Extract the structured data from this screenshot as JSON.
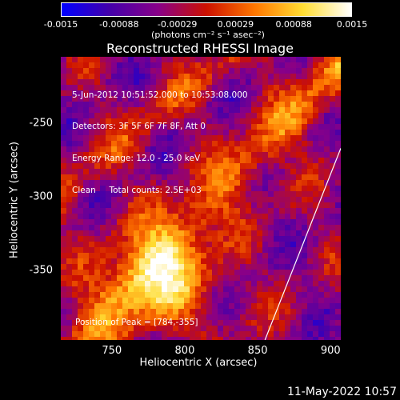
{
  "colorbar": {
    "ticks": [
      "-0.0015",
      "-0.00088",
      "-0.00029",
      "0.00029",
      "0.00088",
      "0.0015"
    ],
    "units": "(photons cm⁻² s⁻¹ asec⁻²)",
    "colors": [
      "#0000ff",
      "#4400aa",
      "#880088",
      "#cc1100",
      "#ff7700",
      "#ffdd33",
      "#ffffff"
    ]
  },
  "chart_data": {
    "type": "heatmap",
    "title": "Reconstructed RHESSI Image",
    "xlabel": "Heliocentric X (arcsec)",
    "ylabel": "Heliocentric Y (arcsec)",
    "xlim": [
      715,
      907
    ],
    "ylim": [
      -397,
      -205
    ],
    "x_ticks": [
      "750",
      "800",
      "850",
      "900"
    ],
    "y_ticks": [
      "-250",
      "-300",
      "-350"
    ],
    "value_range": [
      -0.0015,
      0.0015
    ],
    "peak": [
      784,
      -355
    ],
    "limb_line": {
      "x": [
        855,
        907
      ],
      "y": [
        -397,
        -267
      ]
    },
    "annotations": [
      "5-Jun-2012 10:51:52.000 to 10:53:08.000",
      "Detectors: 3F 5F 6F 7F 8F, Att 0",
      "Energy Range: 12.0 - 25.0 keV",
      "Clean     Total counts: 2.5E+03"
    ],
    "peak_label": "Position of Peak = [784,-355]"
  },
  "footer": {
    "date": "11-May-2022 10:57"
  }
}
